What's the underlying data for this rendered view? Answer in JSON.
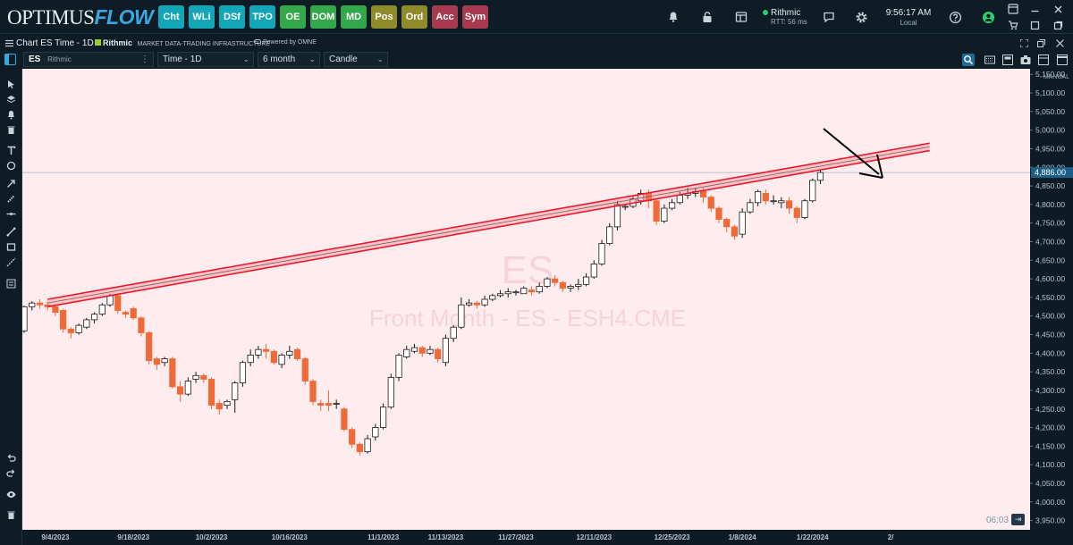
{
  "app": {
    "logo_part1": "OPTIMUS",
    "logo_part2": "FLOW"
  },
  "modules": [
    {
      "label": "Cht",
      "color": "#12a6b7"
    },
    {
      "label": "WLi",
      "color": "#12a6b7"
    },
    {
      "label": "DSf",
      "color": "#12a6b7"
    },
    {
      "label": "TPO",
      "color": "#12a6b7"
    },
    {
      "label": "OE",
      "color": "#33a84a"
    },
    {
      "label": "DOM",
      "color": "#33a84a"
    },
    {
      "label": "MD",
      "color": "#33a84a"
    },
    {
      "label": "Pos",
      "color": "#8f8a2a"
    },
    {
      "label": "Ord",
      "color": "#8f8a2a"
    },
    {
      "label": "Acc",
      "color": "#a83a50"
    },
    {
      "label": "Sym",
      "color": "#a83a50"
    }
  ],
  "connection": {
    "name": "Rithmic",
    "rtt": "RTT: 56 ms"
  },
  "clock": {
    "time": "9:56:17 AM",
    "zone": "Local"
  },
  "chart_window": {
    "title": "Chart ES Time - 1D",
    "provider": "Rithmic",
    "provider_tag": "MARKET DATA-TRADING INFRASTRUCTURE",
    "powered": "Powered by OMNE"
  },
  "toolbar": {
    "symbol": "ES",
    "symbol_provider": "Rithmic",
    "period": "Time - 1D",
    "range": "6 month",
    "style": "Candle"
  },
  "chart_data": {
    "type": "candlestick",
    "symbol_watermark": "ES",
    "contract_watermark": "Front Month - ES - ESH4.CME",
    "scale_mode": "MANUAL",
    "last_price": "4,886.00",
    "timer": "06:03",
    "ylim": [
      3925,
      5165
    ],
    "y_ticks": [
      "5,150.00",
      "5,100.00",
      "5,050.00",
      "5,000.00",
      "4,950.00",
      "4,900.00",
      "4,850.00",
      "4,800.00",
      "4,750.00",
      "4,700.00",
      "4,650.00",
      "4,600.00",
      "4,550.00",
      "4,500.00",
      "4,450.00",
      "4,400.00",
      "4,350.00",
      "4,300.00",
      "4,250.00",
      "4,200.00",
      "4,150.00",
      "4,100.00",
      "4,050.00",
      "4,000.00",
      "3,950.00"
    ],
    "x_ticks": [
      {
        "label": "9/4/2023",
        "i": 4
      },
      {
        "label": "9/18/2023",
        "i": 14
      },
      {
        "label": "10/2/2023",
        "i": 24
      },
      {
        "label": "10/16/2023",
        "i": 34
      },
      {
        "label": "11/1/2023",
        "i": 46
      },
      {
        "label": "11/13/2023",
        "i": 54
      },
      {
        "label": "11/27/2023",
        "i": 63
      },
      {
        "label": "12/11/2023",
        "i": 73
      },
      {
        "label": "12/25/2023",
        "i": 83
      },
      {
        "label": "1/8/2024",
        "i": 92
      },
      {
        "label": "1/22/2024",
        "i": 101
      },
      {
        "label": "2/",
        "i": 111
      }
    ],
    "channel": {
      "from_index": 3,
      "from_price": 4535,
      "to_index": 116,
      "to_price": 4955,
      "half_width": 10
    },
    "candles": [
      [
        4460,
        4525,
        4455,
        4528
      ],
      [
        4525,
        4535,
        4515,
        4540
      ],
      [
        4535,
        4530,
        4520,
        4545
      ],
      [
        4530,
        4525,
        4515,
        4540
      ],
      [
        4525,
        4510,
        4500,
        4530
      ],
      [
        4515,
        4465,
        4455,
        4520
      ],
      [
        4465,
        4455,
        4440,
        4470
      ],
      [
        4455,
        4475,
        4450,
        4480
      ],
      [
        4470,
        4490,
        4465,
        4495
      ],
      [
        4490,
        4505,
        4480,
        4510
      ],
      [
        4505,
        4530,
        4500,
        4535
      ],
      [
        4530,
        4555,
        4525,
        4560
      ],
      [
        4555,
        4515,
        4505,
        4560
      ],
      [
        4510,
        4505,
        4495,
        4515
      ],
      [
        4520,
        4495,
        4490,
        4525
      ],
      [
        4495,
        4455,
        4445,
        4500
      ],
      [
        4455,
        4380,
        4370,
        4460
      ],
      [
        4385,
        4370,
        4355,
        4390
      ],
      [
        4375,
        4385,
        4365,
        4390
      ],
      [
        4385,
        4310,
        4305,
        4390
      ],
      [
        4310,
        4290,
        4270,
        4325
      ],
      [
        4290,
        4325,
        4285,
        4335
      ],
      [
        4330,
        4340,
        4320,
        4350
      ],
      [
        4340,
        4330,
        4320,
        4345
      ],
      [
        4330,
        4260,
        4250,
        4335
      ],
      [
        4265,
        4250,
        4235,
        4275
      ],
      [
        4260,
        4270,
        4250,
        4275
      ],
      [
        4275,
        4320,
        4240,
        4325
      ],
      [
        4320,
        4375,
        4310,
        4380
      ],
      [
        4375,
        4395,
        4365,
        4410
      ],
      [
        4395,
        4410,
        4385,
        4420
      ],
      [
        4410,
        4405,
        4385,
        4425
      ],
      [
        4405,
        4375,
        4370,
        4410
      ],
      [
        4370,
        4395,
        4360,
        4400
      ],
      [
        4395,
        4405,
        4385,
        4420
      ],
      [
        4410,
        4385,
        4380,
        4415
      ],
      [
        4385,
        4325,
        4315,
        4390
      ],
      [
        4325,
        4270,
        4260,
        4330
      ],
      [
        4265,
        4260,
        4245,
        4275
      ],
      [
        4265,
        4260,
        4245,
        4300
      ],
      [
        4265,
        4265,
        4250,
        4275
      ],
      [
        4250,
        4195,
        4190,
        4255
      ],
      [
        4195,
        4155,
        4145,
        4200
      ],
      [
        4155,
        4135,
        4125,
        4160
      ],
      [
        4135,
        4170,
        4130,
        4180
      ],
      [
        4175,
        4200,
        4165,
        4210
      ],
      [
        4200,
        4255,
        4195,
        4265
      ],
      [
        4255,
        4335,
        4250,
        4345
      ],
      [
        4335,
        4395,
        4325,
        4400
      ],
      [
        4390,
        4410,
        4385,
        4420
      ],
      [
        4405,
        4415,
        4400,
        4425
      ],
      [
        4415,
        4400,
        4390,
        4420
      ],
      [
        4400,
        4410,
        4395,
        4420
      ],
      [
        4410,
        4385,
        4375,
        4415
      ],
      [
        4375,
        4440,
        4365,
        4450
      ],
      [
        4440,
        4470,
        4430,
        4475
      ],
      [
        4470,
        4530,
        4465,
        4550
      ],
      [
        4530,
        4535,
        4525,
        4545
      ],
      [
        4535,
        4530,
        4520,
        4540
      ],
      [
        4530,
        4545,
        4525,
        4555
      ],
      [
        4545,
        4555,
        4540,
        4560
      ],
      [
        4555,
        4560,
        4550,
        4570
      ],
      [
        4560,
        4565,
        4550,
        4575
      ],
      [
        4565,
        4565,
        4555,
        4570
      ],
      [
        4560,
        4575,
        4560,
        4580
      ],
      [
        4570,
        4565,
        4555,
        4580
      ],
      [
        4565,
        4580,
        4560,
        4590
      ],
      [
        4580,
        4600,
        4575,
        4605
      ],
      [
        4600,
        4590,
        4580,
        4610
      ],
      [
        4590,
        4575,
        4565,
        4595
      ],
      [
        4575,
        4580,
        4565,
        4585
      ],
      [
        4580,
        4585,
        4570,
        4600
      ],
      [
        4585,
        4605,
        4580,
        4615
      ],
      [
        4605,
        4640,
        4600,
        4650
      ],
      [
        4640,
        4695,
        4635,
        4705
      ],
      [
        4695,
        4740,
        4690,
        4750
      ],
      [
        4740,
        4800,
        4730,
        4810
      ],
      [
        4795,
        4795,
        4785,
        4800
      ],
      [
        4795,
        4815,
        4790,
        4825
      ],
      [
        4810,
        4830,
        4800,
        4840
      ],
      [
        4830,
        4810,
        4790,
        4840
      ],
      [
        4810,
        4755,
        4745,
        4815
      ],
      [
        4755,
        4790,
        4750,
        4800
      ],
      [
        4790,
        4805,
        4785,
        4815
      ],
      [
        4805,
        4825,
        4800,
        4835
      ],
      [
        4825,
        4830,
        4815,
        4845
      ],
      [
        4830,
        4835,
        4820,
        4845
      ],
      [
        4835,
        4820,
        4805,
        4845
      ],
      [
        4820,
        4790,
        4780,
        4825
      ],
      [
        4790,
        4760,
        4750,
        4795
      ],
      [
        4760,
        4740,
        4725,
        4765
      ],
      [
        4740,
        4715,
        4705,
        4745
      ],
      [
        4720,
        4780,
        4710,
        4790
      ],
      [
        4780,
        4805,
        4775,
        4815
      ],
      [
        4805,
        4835,
        4795,
        4840
      ],
      [
        4830,
        4810,
        4800,
        4840
      ],
      [
        4810,
        4810,
        4800,
        4825
      ],
      [
        4805,
        4810,
        4790,
        4820
      ],
      [
        4810,
        4790,
        4775,
        4820
      ],
      [
        4790,
        4765,
        4750,
        4795
      ],
      [
        4765,
        4810,
        4760,
        4815
      ],
      [
        4810,
        4865,
        4805,
        4870
      ],
      [
        4865,
        4886,
        4855,
        4895
      ]
    ]
  }
}
